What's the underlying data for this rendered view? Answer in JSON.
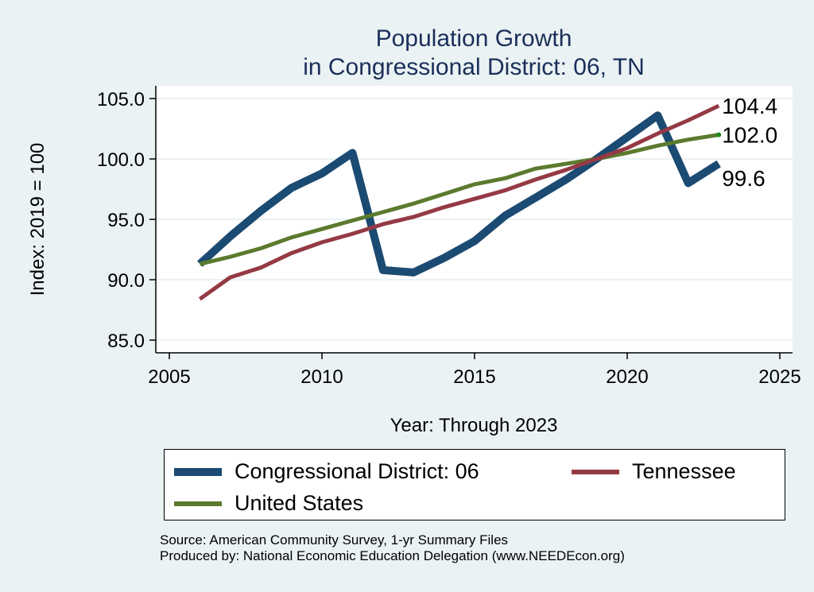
{
  "chart_data": {
    "type": "line",
    "title": [
      "Population Growth",
      "in Congressional District: 06, TN"
    ],
    "xlabel": "Year: Through 2023",
    "ylabel": "Index: 2019 = 100",
    "xlim": [
      2005,
      2025
    ],
    "ylim": [
      84.2,
      106.2
    ],
    "xticks": [
      2005,
      2010,
      2015,
      2020,
      2025
    ],
    "yticks": [
      85.0,
      90.0,
      95.0,
      100.0,
      105.0
    ],
    "ytick_labels": [
      "85.0",
      "90.0",
      "95.0",
      "100.0",
      "105.0"
    ],
    "grid": true,
    "x": [
      2006,
      2007,
      2008,
      2009,
      2010,
      2011,
      2012,
      2013,
      2014,
      2015,
      2016,
      2017,
      2018,
      2019,
      2020,
      2021,
      2022,
      2023
    ],
    "series": [
      {
        "name": "Congressional District: 06",
        "color": "#1b4a72",
        "end_label": "99.6",
        "values": [
          91.3,
          93.6,
          95.7,
          97.6,
          98.8,
          100.5,
          90.8,
          90.6,
          91.8,
          93.2,
          95.3,
          96.8,
          98.3,
          100.0,
          101.8,
          103.6,
          98.0,
          99.6
        ]
      },
      {
        "name": "Tennessee",
        "color": "#943a44",
        "end_label": "104.4",
        "values": [
          88.4,
          90.2,
          91.0,
          92.2,
          93.1,
          93.8,
          94.6,
          95.2,
          96.0,
          96.7,
          97.4,
          98.3,
          99.1,
          100.0,
          100.9,
          102.1,
          103.2,
          104.4
        ]
      },
      {
        "name": "United States",
        "color": "#5b7a2e",
        "end_label": "102.0",
        "values": [
          91.3,
          91.9,
          92.6,
          93.5,
          94.2,
          94.9,
          95.6,
          96.3,
          97.1,
          97.9,
          98.4,
          99.2,
          99.6,
          100.0,
          100.5,
          101.1,
          101.6,
          102.0
        ]
      }
    ],
    "legend_position": "bottom"
  },
  "legend": {
    "items": [
      "Congressional District: 06",
      "Tennessee",
      "United States"
    ]
  },
  "footer": {
    "source": "Source: American Community Survey, 1-yr Summary Files",
    "produced": "Produced by: National Economic Education Delegation (www.NEEDEcon.org)"
  }
}
